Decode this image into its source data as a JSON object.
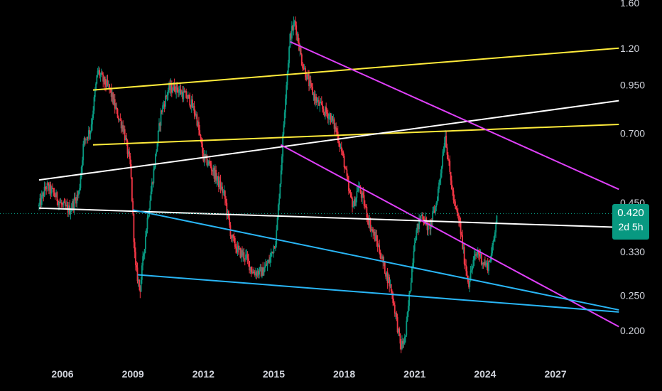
{
  "chart_data": {
    "type": "candlestick",
    "title": "",
    "xlabel": "",
    "ylabel": "",
    "y_scale": "log",
    "ylim": [
      0.18,
      1.6
    ],
    "xlim": [
      2004.9,
      2029.7
    ],
    "y_ticks": [
      "1.60",
      "1.20",
      "0.950",
      "0.700",
      "0.450",
      "0.330",
      "0.250",
      "0.200"
    ],
    "y_tick_values": [
      1.6,
      1.2,
      0.95,
      0.7,
      0.45,
      0.33,
      0.25,
      0.2
    ],
    "x_ticks": [
      "2006",
      "2009",
      "2012",
      "2015",
      "2018",
      "2021",
      "2024",
      "2027"
    ],
    "x_tick_values": [
      2006,
      2009,
      2012,
      2015,
      2018,
      2021,
      2024,
      2027
    ],
    "grid": false,
    "up_color": "#089981",
    "down_color": "#f23645",
    "price_anchors": [
      [
        2005.0,
        0.44
      ],
      [
        2005.3,
        0.5
      ],
      [
        2005.6,
        0.48
      ],
      [
        2006.0,
        0.44
      ],
      [
        2006.3,
        0.43
      ],
      [
        2006.7,
        0.48
      ],
      [
        2006.9,
        0.66
      ],
      [
        2007.2,
        0.72
      ],
      [
        2007.5,
        1.04
      ],
      [
        2007.8,
        0.96
      ],
      [
        2008.0,
        0.93
      ],
      [
        2008.3,
        0.8
      ],
      [
        2008.6,
        0.72
      ],
      [
        2008.9,
        0.56
      ],
      [
        2009.1,
        0.3
      ],
      [
        2009.3,
        0.26
      ],
      [
        2009.6,
        0.4
      ],
      [
        2009.9,
        0.56
      ],
      [
        2010.2,
        0.8
      ],
      [
        2010.5,
        0.92
      ],
      [
        2010.8,
        0.94
      ],
      [
        2011.1,
        0.9
      ],
      [
        2011.4,
        0.87
      ],
      [
        2011.7,
        0.78
      ],
      [
        2012.0,
        0.6
      ],
      [
        2012.3,
        0.57
      ],
      [
        2012.6,
        0.52
      ],
      [
        2012.9,
        0.47
      ],
      [
        2013.2,
        0.36
      ],
      [
        2013.5,
        0.33
      ],
      [
        2013.8,
        0.32
      ],
      [
        2014.1,
        0.29
      ],
      [
        2014.5,
        0.29
      ],
      [
        2014.8,
        0.31
      ],
      [
        2015.1,
        0.36
      ],
      [
        2015.3,
        0.55
      ],
      [
        2015.5,
        0.9
      ],
      [
        2015.7,
        1.3
      ],
      [
        2015.9,
        1.42
      ],
      [
        2016.2,
        1.1
      ],
      [
        2016.5,
        0.96
      ],
      [
        2016.8,
        0.86
      ],
      [
        2017.1,
        0.81
      ],
      [
        2017.4,
        0.78
      ],
      [
        2017.7,
        0.7
      ],
      [
        2018.0,
        0.58
      ],
      [
        2018.2,
        0.48
      ],
      [
        2018.4,
        0.44
      ],
      [
        2018.6,
        0.5
      ],
      [
        2018.8,
        0.46
      ],
      [
        2019.1,
        0.39
      ],
      [
        2019.4,
        0.35
      ],
      [
        2019.7,
        0.3
      ],
      [
        2020.0,
        0.26
      ],
      [
        2020.2,
        0.22
      ],
      [
        2020.4,
        0.18
      ],
      [
        2020.6,
        0.19
      ],
      [
        2020.8,
        0.26
      ],
      [
        2021.0,
        0.36
      ],
      [
        2021.3,
        0.42
      ],
      [
        2021.6,
        0.38
      ],
      [
        2021.9,
        0.44
      ],
      [
        2022.1,
        0.54
      ],
      [
        2022.3,
        0.7
      ],
      [
        2022.5,
        0.54
      ],
      [
        2022.7,
        0.44
      ],
      [
        2022.9,
        0.4
      ],
      [
        2023.1,
        0.32
      ],
      [
        2023.3,
        0.27
      ],
      [
        2023.5,
        0.31
      ],
      [
        2023.7,
        0.33
      ],
      [
        2023.9,
        0.31
      ],
      [
        2024.1,
        0.3
      ],
      [
        2024.3,
        0.33
      ],
      [
        2024.5,
        0.42
      ]
    ],
    "trendlines": [
      {
        "color": "#ffeb3b",
        "points": [
          [
            2007.3,
            0.92
          ],
          [
            2029.7,
            1.2
          ]
        ]
      },
      {
        "color": "#ffeb3b",
        "points": [
          [
            2007.3,
            0.65
          ],
          [
            2029.7,
            0.74
          ]
        ]
      },
      {
        "color": "#ffffff",
        "points": [
          [
            2005.0,
            0.52
          ],
          [
            2029.7,
            0.86
          ]
        ]
      },
      {
        "color": "#ffffff",
        "points": [
          [
            2005.0,
            0.435
          ],
          [
            2029.7,
            0.385
          ]
        ]
      },
      {
        "color": "#e040fb",
        "points": [
          [
            2015.7,
            1.25
          ],
          [
            2029.7,
            0.49
          ]
        ]
      },
      {
        "color": "#e040fb",
        "points": [
          [
            2015.3,
            0.65
          ],
          [
            2029.7,
            0.205
          ]
        ]
      },
      {
        "color": "#29b6f6",
        "points": [
          [
            2009.0,
            0.43
          ],
          [
            2029.7,
            0.228
          ]
        ]
      },
      {
        "color": "#29b6f6",
        "points": [
          [
            2009.2,
            0.285
          ],
          [
            2029.7,
            0.225
          ]
        ]
      }
    ],
    "last_price": {
      "value": 0.42,
      "label": "0.420",
      "countdown": "2d 5h",
      "color": "#089981"
    }
  }
}
